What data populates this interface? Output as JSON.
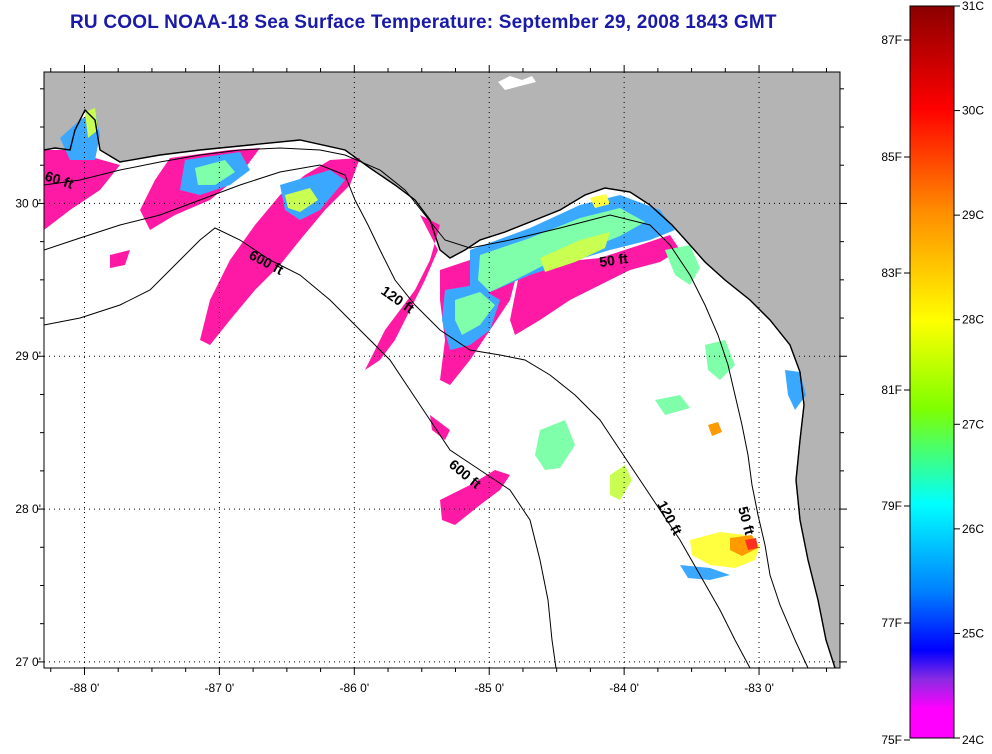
{
  "title": "RU COOL  NOAA-18  Sea Surface Temperature:  September 29, 2008 1843 GMT",
  "map": {
    "lon_range": [
      -88.3,
      -82.4
    ],
    "lat_range": [
      26.96,
      30.86
    ],
    "lat_ticks": [
      {
        "value": 30,
        "label": "30 0'"
      },
      {
        "value": 29,
        "label": "29 0'"
      },
      {
        "value": 28,
        "label": "28 0'"
      },
      {
        "value": 27,
        "label": "27 0'"
      }
    ],
    "lon_ticks": [
      {
        "value": -88,
        "label": "-88 0'"
      },
      {
        "value": -87,
        "label": "-87 0'"
      },
      {
        "value": -86,
        "label": "-86 0'"
      },
      {
        "value": -85,
        "label": "-85 0'"
      },
      {
        "value": -84,
        "label": "-84 0'"
      },
      {
        "value": -83,
        "label": "-83 0'"
      }
    ],
    "grid": "dotted",
    "land_color": "#b4b4b4",
    "contour_labels": [
      "60 ft",
      "600 ft",
      "120 ft",
      "50 ft",
      "600 ft",
      "120 ft",
      "50 ft"
    ]
  },
  "colorbar": {
    "celsius_labels": [
      "31C",
      "30C",
      "29C",
      "28C",
      "27C",
      "26C",
      "25C",
      "24C"
    ],
    "fahrenheit_labels": [
      "87F",
      "85F",
      "83F",
      "81F",
      "79F",
      "77F",
      "75F"
    ],
    "colors": [
      "#8b0000",
      "#ff0000",
      "#ff8c00",
      "#ffff00",
      "#7fff00",
      "#00ffff",
      "#0080ff",
      "#0000ff",
      "#8a2be2",
      "#ff00ff"
    ]
  }
}
